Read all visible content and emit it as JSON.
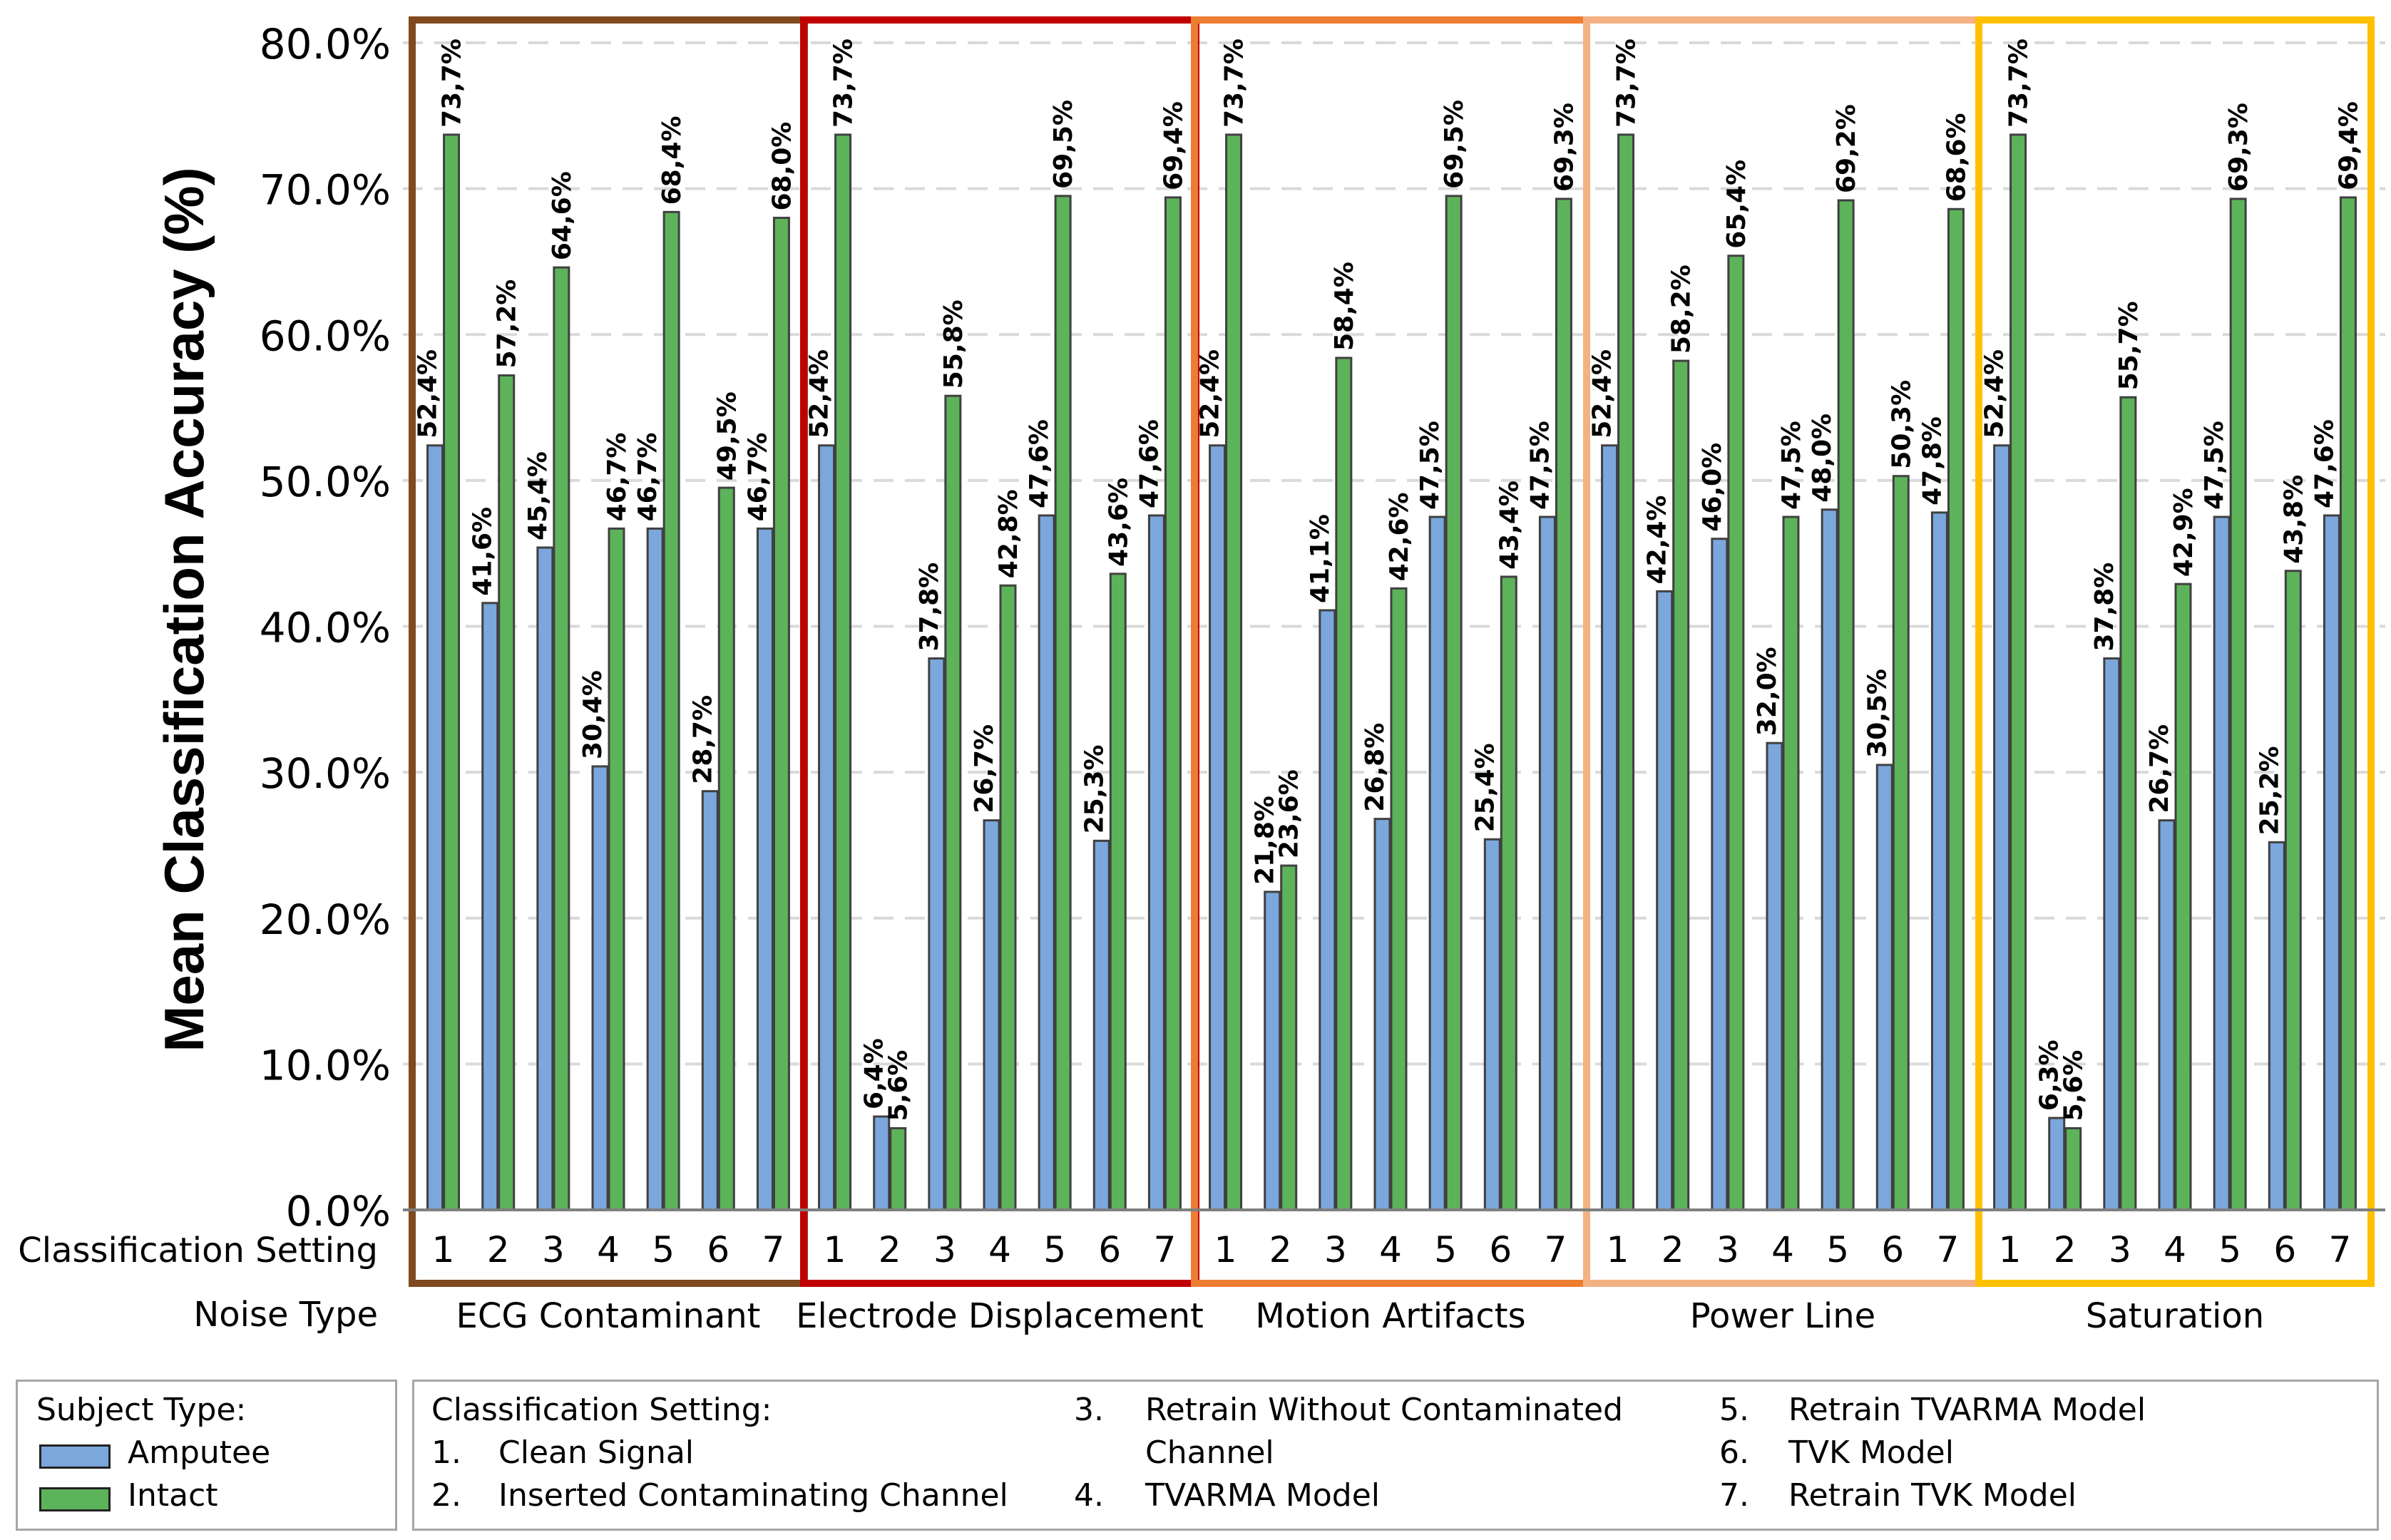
{
  "chart_data": {
    "type": "bar",
    "ylabel": "Mean Classification Accuracy (%)",
    "ylim": [
      0,
      80
    ],
    "yticks": [
      "0.0%",
      "10.0%",
      "20.0%",
      "30.0%",
      "40.0%",
      "50.0%",
      "60.0%",
      "70.0%",
      "80.0%"
    ],
    "grid": true,
    "x_row_label": "Classification Setting",
    "group_row_label": "Noise Type",
    "settings": [
      "1",
      "2",
      "3",
      "4",
      "5",
      "6",
      "7"
    ],
    "colors": {
      "Amputee": "#7ba7dc",
      "Intact": "#5db35a"
    },
    "groups": [
      {
        "name": "ECG Contaminant",
        "border": "#7f4a1f",
        "Amputee": [
          52.4,
          41.6,
          45.4,
          30.4,
          46.7,
          28.7,
          46.7
        ],
        "Intact": [
          73.7,
          57.2,
          64.6,
          46.7,
          68.4,
          49.5,
          68.0
        ],
        "Amputee_labels": [
          "52,4%",
          "41,6%",
          "45,4%",
          "30,4%",
          "46,7%",
          "28,7%",
          "46,7%"
        ],
        "Intact_labels": [
          "73,7%",
          "57,2%",
          "64,6%",
          "46,7%",
          "68,4%",
          "49,5%",
          "68,0%"
        ]
      },
      {
        "name": "Electrode Displacement",
        "border": "#c00000",
        "Amputee": [
          52.4,
          6.4,
          37.8,
          26.7,
          47.6,
          25.3,
          47.6
        ],
        "Intact": [
          73.7,
          5.6,
          55.8,
          42.8,
          69.5,
          43.6,
          69.4
        ],
        "Amputee_labels": [
          "52,4%",
          "6,4%",
          "37,8%",
          "26,7%",
          "47,6%",
          "25,3%",
          "47,6%"
        ],
        "Intact_labels": [
          "73,7%",
          "5,6%",
          "55,8%",
          "42,8%",
          "69,5%",
          "43,6%",
          "69,4%"
        ]
      },
      {
        "name": "Motion Artifacts",
        "border": "#ed7d31",
        "Amputee": [
          52.4,
          21.8,
          41.1,
          26.8,
          47.5,
          25.4,
          47.5
        ],
        "Intact": [
          73.7,
          23.6,
          58.4,
          42.6,
          69.5,
          43.4,
          69.3
        ],
        "Amputee_labels": [
          "52,4%",
          "21,8%",
          "41,1%",
          "26,8%",
          "47,5%",
          "25,4%",
          "47,5%"
        ],
        "Intact_labels": [
          "73,7%",
          "23,6%",
          "58,4%",
          "42,6%",
          "69,5%",
          "43,4%",
          "69,3%"
        ]
      },
      {
        "name": "Power Line",
        "border": "#f4b183",
        "Amputee": [
          52.4,
          42.4,
          46.0,
          32.0,
          48.0,
          30.5,
          47.8
        ],
        "Intact": [
          73.7,
          58.2,
          65.4,
          47.5,
          69.2,
          50.3,
          68.6
        ],
        "Amputee_labels": [
          "52,4%",
          "42,4%",
          "46,0%",
          "32,0%",
          "48,0%",
          "30,5%",
          "47,8%"
        ],
        "Intact_labels": [
          "73,7%",
          "58,2%",
          "65,4%",
          "47,5%",
          "69,2%",
          "50,3%",
          "68,6%"
        ]
      },
      {
        "name": "Saturation",
        "border": "#ffc000",
        "Amputee": [
          52.4,
          6.3,
          37.8,
          26.7,
          47.5,
          25.2,
          47.6
        ],
        "Intact": [
          73.7,
          5.6,
          55.7,
          42.9,
          69.3,
          43.8,
          69.4
        ],
        "Amputee_labels": [
          "52,4%",
          "6,3%",
          "37,8%",
          "26,7%",
          "47,5%",
          "25,2%",
          "47,6%"
        ],
        "Intact_labels": [
          "73,7%",
          "5,6%",
          "55,7%",
          "42,9%",
          "69,3%",
          "43,8%",
          "69,4%"
        ]
      }
    ]
  },
  "legend_subject": {
    "title": "Subject Type:",
    "items": [
      {
        "label": "Amputee",
        "color": "#7ba7dc"
      },
      {
        "label": "Intact",
        "color": "#5db35a"
      }
    ]
  },
  "legend_settings": {
    "title": "Classification Setting:",
    "col1": [
      {
        "num": "1.",
        "text": "Clean Signal"
      },
      {
        "num": "2.",
        "text": "Inserted Contaminating Channel"
      }
    ],
    "col2_num3": "3.",
    "col2_text3a": "Retrain Without Contaminated",
    "col2_text3b": "Channel",
    "col2_num4": "4.",
    "col2_text4": "TVARMA Model",
    "col3": [
      {
        "num": "5.",
        "text": "Retrain TVARMA Model"
      },
      {
        "num": "6.",
        "text": "TVK Model"
      },
      {
        "num": "7.",
        "text": "Retrain TVK Model"
      }
    ]
  }
}
